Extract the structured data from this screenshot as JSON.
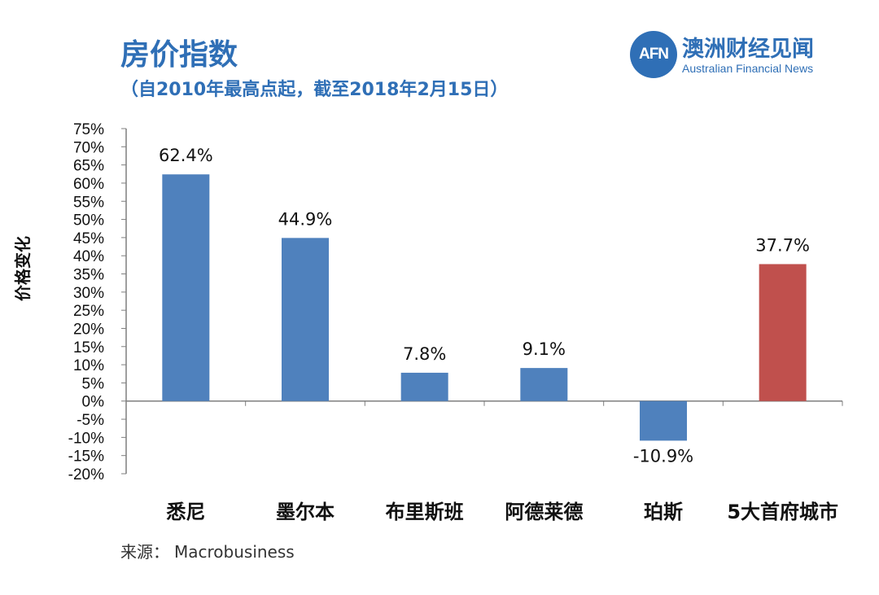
{
  "header": {
    "title": "房价指数",
    "subtitle": "（自2010年最高点起，截至2018年2月15日）"
  },
  "logo": {
    "mark": "AFN",
    "name_cn": "澳洲财经见闻",
    "name_en": "Australian Financial News"
  },
  "footer": {
    "source_label": "来源：",
    "source_value": "Macrobusiness"
  },
  "colors": {
    "accent": "#2f6fb6",
    "bar_default": "#4f81bd",
    "bar_highlight": "#c0504d"
  },
  "chart_data": {
    "type": "bar",
    "title": "房价指数",
    "subtitle": "（自2010年最高点起，截至2018年2月15日）",
    "xlabel": "",
    "ylabel": "价格变化",
    "categories": [
      "悉尼",
      "墨尔本",
      "布里斯班",
      "阿德莱德",
      "珀斯",
      "5大首府城市"
    ],
    "values": [
      62.4,
      44.9,
      7.8,
      9.1,
      -10.9,
      37.7
    ],
    "data_labels": [
      "62.4%",
      "44.9%",
      "7.8%",
      "9.1%",
      "-10.9%",
      "37.7%"
    ],
    "bar_colors": [
      "#4f81bd",
      "#4f81bd",
      "#4f81bd",
      "#4f81bd",
      "#4f81bd",
      "#c0504d"
    ],
    "ylim": [
      -20,
      75
    ],
    "ytick_step": 5,
    "ytick_suffix": "%",
    "grid": false,
    "legend": "none"
  }
}
